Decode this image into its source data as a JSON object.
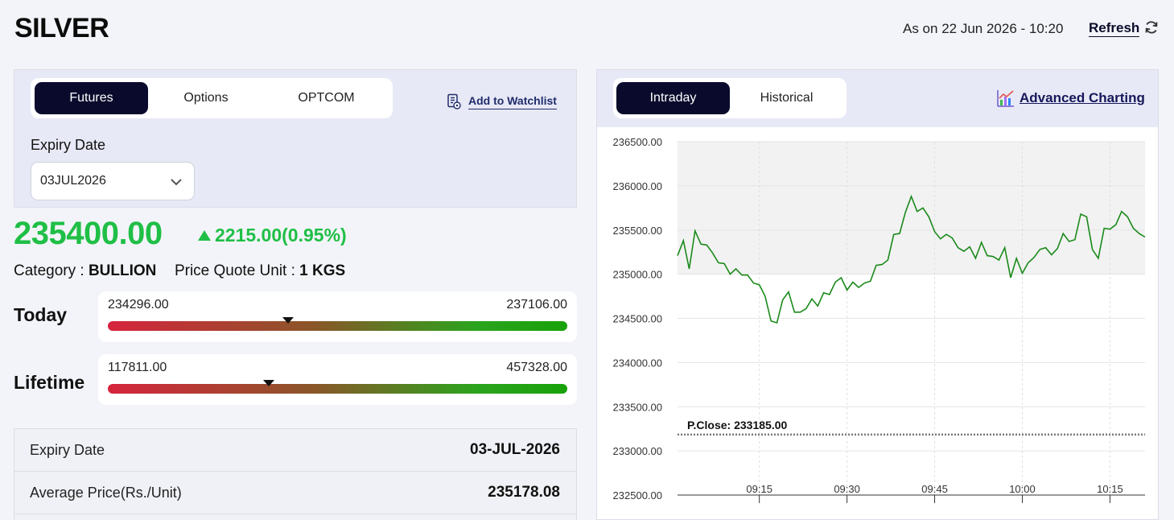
{
  "header": {
    "title": "SILVER",
    "as_on": "As on 22 Jun 2026 - 10:20",
    "refresh_label": "Refresh"
  },
  "contract": {
    "tabs": [
      {
        "label": "Futures",
        "active": true
      },
      {
        "label": "Options",
        "active": false
      },
      {
        "label": "OPTCOM",
        "active": false
      }
    ],
    "watchlist_label": "Add to Watchlist",
    "expiry_label": "Expiry Date",
    "expiry_selected": "03JUL2026"
  },
  "quote": {
    "price": "235400.00",
    "change": "2215.00(0.95%)",
    "direction": "up",
    "category_label": "Category :",
    "category": "BULLION",
    "unit_label": "Price Quote Unit :",
    "unit": "1 KGS"
  },
  "ranges": {
    "today": {
      "label": "Today",
      "low": "234296.00",
      "high": "237106.00",
      "position": 0.393
    },
    "lifetime": {
      "label": "Lifetime",
      "low": "117811.00",
      "high": "457328.00",
      "position": 0.35
    }
  },
  "details": [
    {
      "label": "Expiry Date",
      "value": "03-JUL-2026"
    },
    {
      "label": "Average Price(Rs./Unit)",
      "value": "235178.08"
    }
  ],
  "chart_tabs": [
    {
      "label": "Intraday",
      "active": true
    },
    {
      "label": "Historical",
      "active": false
    }
  ],
  "advanced_charting_label": "Advanced Charting",
  "colors": {
    "up": "#1fbf46",
    "line": "#1a8a1a",
    "nav_active": "#0a0b2c",
    "panel_bg": "#e8e9f6"
  },
  "chart_data": {
    "type": "line",
    "y_ticks": [
      "236500.00",
      "236000.00",
      "235500.00",
      "235000.00",
      "234500.00",
      "234000.00",
      "233500.00",
      "233000.00",
      "232500.00"
    ],
    "x_ticks": [
      "09:15",
      "09:30",
      "09:45",
      "10:00",
      "10:15"
    ],
    "ylim": [
      232500,
      236500
    ],
    "xlim": [
      0,
      80
    ],
    "x_tick_positions": [
      14,
      29,
      44,
      59,
      74
    ],
    "pclose": 233185,
    "pclose_label": "P.Close: 233185.00",
    "grid": true,
    "series": [
      {
        "x": [
          0,
          1,
          2,
          3,
          4,
          5,
          6,
          7,
          8,
          9,
          10,
          11,
          12,
          13,
          14,
          15,
          16,
          17,
          18,
          19,
          20,
          21,
          22,
          23,
          24,
          25,
          26,
          27,
          28,
          29,
          30,
          31,
          32,
          33,
          34,
          35,
          36,
          37,
          38,
          39,
          40,
          41,
          42,
          43,
          44,
          45,
          46,
          47,
          48,
          49,
          50,
          51,
          52,
          53,
          54,
          55,
          56,
          57,
          58,
          59,
          60,
          61,
          62,
          63,
          64,
          65,
          66,
          67,
          68,
          69,
          70,
          71,
          72,
          73,
          74,
          75,
          76,
          77,
          78,
          79,
          80
        ],
        "values": [
          235210,
          235380,
          235060,
          235490,
          235340,
          235330,
          235240,
          235130,
          235120,
          235000,
          235060,
          234990,
          234990,
          234900,
          234880,
          234750,
          234470,
          234450,
          234710,
          234800,
          234570,
          234570,
          234610,
          234720,
          234640,
          234790,
          234770,
          234910,
          234960,
          234820,
          234910,
          234850,
          234900,
          234920,
          235100,
          235110,
          235160,
          235450,
          235460,
          235700,
          235880,
          235710,
          235750,
          235650,
          235480,
          235400,
          235450,
          235410,
          235300,
          235260,
          235310,
          235180,
          235360,
          235210,
          235200,
          235160,
          235300,
          234960,
          235180,
          235010,
          235130,
          235190,
          235280,
          235300,
          235220,
          235290,
          235460,
          235370,
          235390,
          235680,
          235650,
          235280,
          235180,
          235520,
          235510,
          235560,
          235710,
          235650,
          235520,
          235460,
          235420
        ]
      }
    ]
  }
}
